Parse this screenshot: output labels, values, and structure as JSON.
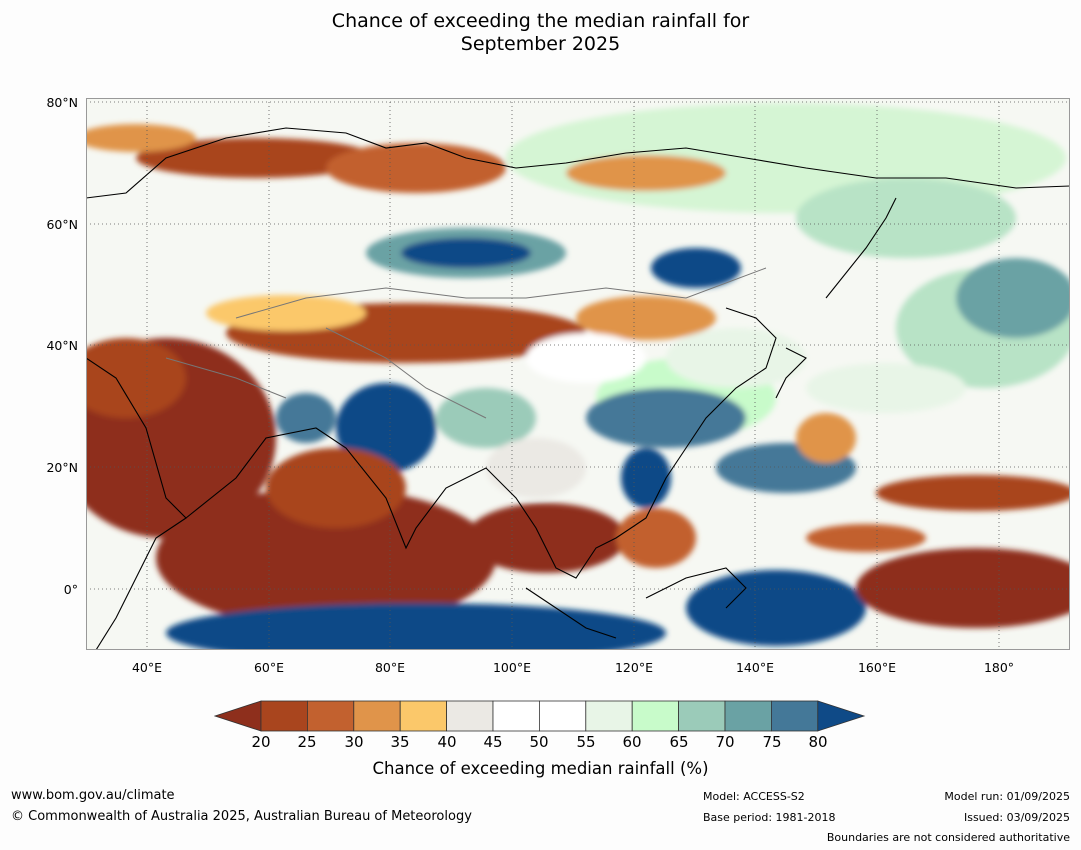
{
  "title_line1": "Chance of exceeding the median rainfall for",
  "title_line2": "September 2025",
  "lat_labels": [
    "80°N",
    "60°N",
    "40°N",
    "20°N",
    "0°"
  ],
  "lon_labels": [
    "40°E",
    "60°E",
    "80°E",
    "100°E",
    "120°E",
    "140°E",
    "160°E",
    "180°"
  ],
  "colorbar": {
    "title": "Chance of exceeding median rainfall (%)",
    "ticks": [
      "20",
      "25",
      "30",
      "35",
      "40",
      "45",
      "50",
      "55",
      "60",
      "65",
      "70",
      "75",
      "80"
    ],
    "colors": [
      "#8e2f1c",
      "#a9451e",
      "#c2612f",
      "#e0944a",
      "#fbc86a",
      "#ebe9e4",
      "#ffffff",
      "#ffffff",
      "#e8f5e7",
      "#c8fbca",
      "#9bcbb9",
      "#6aa2a4",
      "#447898",
      "#0f4a87"
    ]
  },
  "footer": {
    "website": "www.bom.gov.au/climate",
    "copyright": "© Commonwealth of Australia 2025, Australian Bureau of Meteorology",
    "model": "Model: ACCESS-S2",
    "base_period": "Base period: 1981-2018",
    "model_run": "Model run: 01/09/2025",
    "issued": "Issued: 03/09/2025",
    "disclaimer": "Boundaries are not considered authoritative"
  }
}
